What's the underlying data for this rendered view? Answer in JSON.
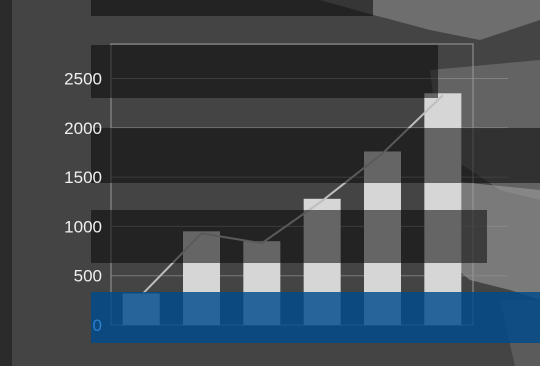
{
  "chart_data": {
    "type": "bar",
    "categories": [
      "",
      "",
      "",
      "",
      "",
      ""
    ],
    "values": [
      320,
      950,
      850,
      1280,
      1760,
      2350
    ],
    "trend": [
      320,
      950,
      850,
      1280,
      1760,
      2350
    ],
    "yticks": [
      "0",
      "500",
      "1000",
      "1500",
      "2000",
      "2500"
    ],
    "ylim": [
      0,
      2850
    ],
    "grid": true,
    "title": "",
    "xlabel": "",
    "ylabel": ""
  },
  "colors": {
    "background": "#3a3a3a",
    "bar": "#d6d6d6",
    "overlay_band": "#0a0a0a",
    "highlight_band": "#004a8c",
    "tick_label": "#f0f0f0",
    "zero_label": "#2d7fd0"
  }
}
